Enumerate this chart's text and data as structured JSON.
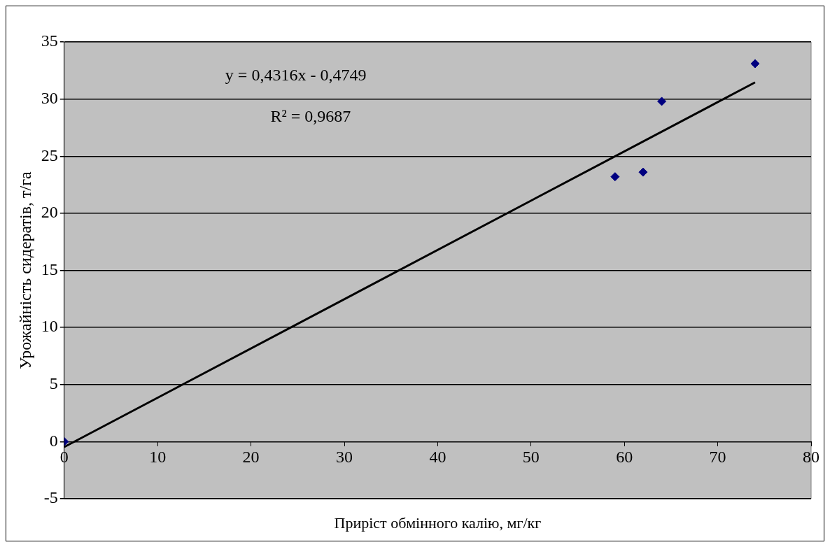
{
  "chart_data": {
    "type": "scatter",
    "xlabel": "Приріст обмінного калію, мг/кг",
    "ylabel": "Урожайність сидератів, т/га",
    "xlim": [
      0,
      80
    ],
    "xticks": [
      0,
      10,
      20,
      30,
      40,
      50,
      60,
      70,
      80
    ],
    "ylim": [
      -5,
      35
    ],
    "yticks": [
      -5,
      0,
      5,
      10,
      15,
      20,
      25,
      30,
      35
    ],
    "grid": "y",
    "legend": false,
    "annotations": [
      "y = 0,4316x - 0,4749",
      "R² = 0,9687"
    ],
    "series": [
      {
        "color": "#000080",
        "marker": "diamond",
        "x": [
          0,
          59,
          62,
          64,
          74
        ],
        "values": [
          0,
          23.2,
          23.6,
          29.8,
          33.1
        ]
      },
      {
        "type": "line",
        "color": "#000000",
        "marker": "none",
        "x": [
          0,
          74
        ],
        "values": [
          -0.47,
          31.46
        ]
      }
    ]
  }
}
